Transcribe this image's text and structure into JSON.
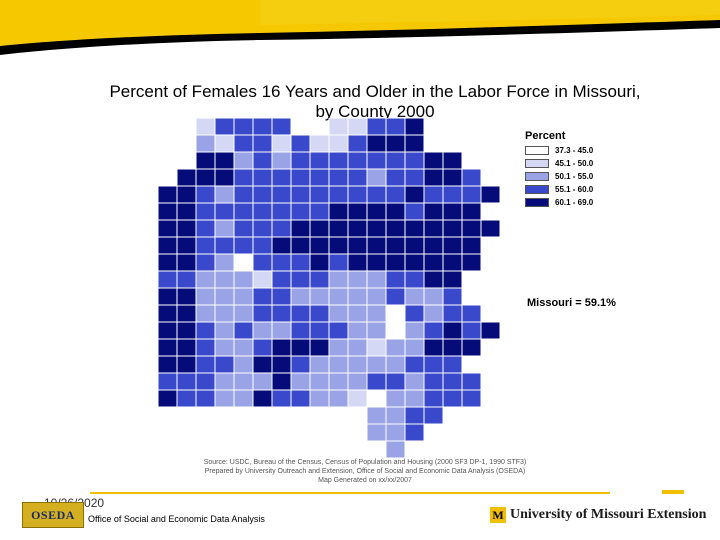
{
  "slide": {
    "title_line1": "Percent of Females 16 Years and Older in the Labor Force in Missouri,",
    "title_line2": "by County  2000",
    "state_average": "Missouri = 59.1%",
    "source_line1": "Source: USDC, Bureau of the Census, Census of Population and Housing (2000 SF3 DP-1, 1990 STF3)",
    "source_line2": "Prepared by University Outreach and Extension, Office of Social and Economic Data Analysis (OSEDA)",
    "source_line3": "Map Generated on xx/xx/2007",
    "date": "10/26/2020",
    "footer_org": "Office of Social and Economic Data Analysis",
    "logo_text": "OSEDA",
    "footer_right": "University of Missouri Extension",
    "m_letter": "M"
  },
  "legend": {
    "title": "Percent",
    "items": [
      {
        "label": "37.3 - 45.0",
        "color": "#ffffff"
      },
      {
        "label": "45.1 - 50.0",
        "color": "#d4d8f4"
      },
      {
        "label": "50.1 - 55.0",
        "color": "#9aa3e6"
      },
      {
        "label": "55.1 - 60.0",
        "color": "#3a48cc"
      },
      {
        "label": "60.1 - 69.0",
        "color": "#050c7a"
      }
    ]
  },
  "colors": {
    "banner_gold": "#f5c800",
    "banner_black": "#000000",
    "county_border": "#ffffff"
  }
}
